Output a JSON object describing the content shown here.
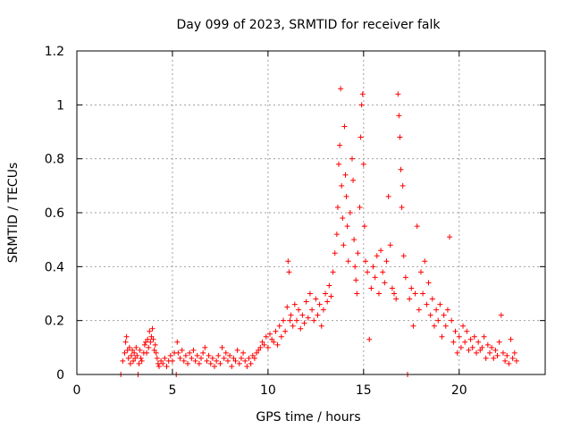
{
  "chart_data": {
    "type": "scatter",
    "title": "Day 099 of 2023, SRMTID for receiver falk",
    "xlabel": "GPS time / hours",
    "ylabel": "SRMTID / TECUs",
    "xlim": [
      0,
      24.5
    ],
    "ylim": [
      0,
      1.2
    ],
    "xticks": [
      0,
      5,
      10,
      15,
      20
    ],
    "xtick_labels": [
      "0",
      "5",
      "10",
      "15",
      "20"
    ],
    "yticks": [
      0,
      0.2,
      0.4,
      0.6,
      0.8,
      1.0,
      1.2
    ],
    "ytick_labels": [
      "0",
      "0.2",
      "0.4",
      "0.6",
      "0.8",
      "1",
      "1.2"
    ],
    "grid": true,
    "marker": "plus",
    "color": "#ff0000",
    "series": [
      {
        "name": "SRMTID",
        "points": [
          [
            2.3,
            0.0
          ],
          [
            2.4,
            0.05
          ],
          [
            2.5,
            0.08
          ],
          [
            2.55,
            0.12
          ],
          [
            2.6,
            0.14
          ],
          [
            2.65,
            0.09
          ],
          [
            2.7,
            0.06
          ],
          [
            2.75,
            0.1
          ],
          [
            2.8,
            0.04
          ],
          [
            2.85,
            0.07
          ],
          [
            2.9,
            0.09
          ],
          [
            2.95,
            0.05
          ],
          [
            3.0,
            0.08
          ],
          [
            3.05,
            0.06
          ],
          [
            3.1,
            0.1
          ],
          [
            3.15,
            0.07
          ],
          [
            3.2,
            0.0
          ],
          [
            3.25,
            0.04
          ],
          [
            3.3,
            0.09
          ],
          [
            3.35,
            0.06
          ],
          [
            3.4,
            0.05
          ],
          [
            3.5,
            0.08
          ],
          [
            3.55,
            0.11
          ],
          [
            3.6,
            0.12
          ],
          [
            3.65,
            0.08
          ],
          [
            3.7,
            0.13
          ],
          [
            3.75,
            0.1
          ],
          [
            3.8,
            0.16
          ],
          [
            3.85,
            0.12
          ],
          [
            3.9,
            0.14
          ],
          [
            3.95,
            0.17
          ],
          [
            4.0,
            0.13
          ],
          [
            4.05,
            0.09
          ],
          [
            4.1,
            0.11
          ],
          [
            4.15,
            0.08
          ],
          [
            4.2,
            0.06
          ],
          [
            4.25,
            0.04
          ],
          [
            4.3,
            0.03
          ],
          [
            4.4,
            0.05
          ],
          [
            4.5,
            0.04
          ],
          [
            4.6,
            0.06
          ],
          [
            4.7,
            0.03
          ],
          [
            4.8,
            0.05
          ],
          [
            4.9,
            0.07
          ],
          [
            5.0,
            0.05
          ],
          [
            5.1,
            0.08
          ],
          [
            5.2,
            0.0
          ],
          [
            5.25,
            0.12
          ],
          [
            5.3,
            0.08
          ],
          [
            5.4,
            0.06
          ],
          [
            5.5,
            0.09
          ],
          [
            5.6,
            0.05
          ],
          [
            5.7,
            0.07
          ],
          [
            5.8,
            0.04
          ],
          [
            5.9,
            0.08
          ],
          [
            6.0,
            0.06
          ],
          [
            6.1,
            0.09
          ],
          [
            6.2,
            0.05
          ],
          [
            6.3,
            0.07
          ],
          [
            6.4,
            0.04
          ],
          [
            6.5,
            0.06
          ],
          [
            6.6,
            0.08
          ],
          [
            6.7,
            0.1
          ],
          [
            6.8,
            0.05
          ],
          [
            6.9,
            0.07
          ],
          [
            7.0,
            0.04
          ],
          [
            7.1,
            0.06
          ],
          [
            7.2,
            0.03
          ],
          [
            7.3,
            0.05
          ],
          [
            7.4,
            0.07
          ],
          [
            7.5,
            0.04
          ],
          [
            7.6,
            0.1
          ],
          [
            7.7,
            0.06
          ],
          [
            7.8,
            0.08
          ],
          [
            7.9,
            0.05
          ],
          [
            8.0,
            0.07
          ],
          [
            8.1,
            0.03
          ],
          [
            8.2,
            0.06
          ],
          [
            8.3,
            0.05
          ],
          [
            8.4,
            0.09
          ],
          [
            8.5,
            0.04
          ],
          [
            8.6,
            0.06
          ],
          [
            8.7,
            0.08
          ],
          [
            8.8,
            0.05
          ],
          [
            8.9,
            0.03
          ],
          [
            9.0,
            0.06
          ],
          [
            9.1,
            0.04
          ],
          [
            9.2,
            0.07
          ],
          [
            9.3,
            0.06
          ],
          [
            9.4,
            0.08
          ],
          [
            9.5,
            0.09
          ],
          [
            9.6,
            0.1
          ],
          [
            9.7,
            0.12
          ],
          [
            9.8,
            0.11
          ],
          [
            9.9,
            0.14
          ],
          [
            10.0,
            0.1
          ],
          [
            10.1,
            0.15
          ],
          [
            10.2,
            0.13
          ],
          [
            10.3,
            0.12
          ],
          [
            10.4,
            0.16
          ],
          [
            10.5,
            0.11
          ],
          [
            10.6,
            0.18
          ],
          [
            10.7,
            0.14
          ],
          [
            10.8,
            0.2
          ],
          [
            10.9,
            0.16
          ],
          [
            11.0,
            0.25
          ],
          [
            11.05,
            0.42
          ],
          [
            11.1,
            0.38
          ],
          [
            11.15,
            0.2
          ],
          [
            11.2,
            0.22
          ],
          [
            11.3,
            0.18
          ],
          [
            11.4,
            0.26
          ],
          [
            11.5,
            0.2
          ],
          [
            11.6,
            0.24
          ],
          [
            11.7,
            0.17
          ],
          [
            11.8,
            0.22
          ],
          [
            11.9,
            0.19
          ],
          [
            12.0,
            0.27
          ],
          [
            12.1,
            0.21
          ],
          [
            12.2,
            0.3
          ],
          [
            12.3,
            0.24
          ],
          [
            12.4,
            0.2
          ],
          [
            12.5,
            0.28
          ],
          [
            12.6,
            0.22
          ],
          [
            12.7,
            0.26
          ],
          [
            12.8,
            0.18
          ],
          [
            12.9,
            0.24
          ],
          [
            13.0,
            0.3
          ],
          [
            13.1,
            0.27
          ],
          [
            13.2,
            0.33
          ],
          [
            13.3,
            0.29
          ],
          [
            13.4,
            0.38
          ],
          [
            13.5,
            0.45
          ],
          [
            13.6,
            0.52
          ],
          [
            13.65,
            0.62
          ],
          [
            13.7,
            0.78
          ],
          [
            13.75,
            0.85
          ],
          [
            13.8,
            1.06
          ],
          [
            13.85,
            0.7
          ],
          [
            13.9,
            0.58
          ],
          [
            13.95,
            0.48
          ],
          [
            14.0,
            0.92
          ],
          [
            14.05,
            0.74
          ],
          [
            14.1,
            0.66
          ],
          [
            14.15,
            0.55
          ],
          [
            14.2,
            0.42
          ],
          [
            14.3,
            0.6
          ],
          [
            14.4,
            0.8
          ],
          [
            14.45,
            0.72
          ],
          [
            14.5,
            0.5
          ],
          [
            14.55,
            0.4
          ],
          [
            14.6,
            0.35
          ],
          [
            14.65,
            0.3
          ],
          [
            14.7,
            0.45
          ],
          [
            14.8,
            0.62
          ],
          [
            14.85,
            0.88
          ],
          [
            14.9,
            1.0
          ],
          [
            14.95,
            1.04
          ],
          [
            15.0,
            0.78
          ],
          [
            15.05,
            0.55
          ],
          [
            15.1,
            0.42
          ],
          [
            15.2,
            0.38
          ],
          [
            15.3,
            0.13
          ],
          [
            15.4,
            0.32
          ],
          [
            15.5,
            0.4
          ],
          [
            15.6,
            0.36
          ],
          [
            15.7,
            0.44
          ],
          [
            15.8,
            0.3
          ],
          [
            15.9,
            0.46
          ],
          [
            16.0,
            0.38
          ],
          [
            16.1,
            0.34
          ],
          [
            16.2,
            0.42
          ],
          [
            16.3,
            0.66
          ],
          [
            16.4,
            0.48
          ],
          [
            16.5,
            0.32
          ],
          [
            16.6,
            0.3
          ],
          [
            16.7,
            0.28
          ],
          [
            16.8,
            1.04
          ],
          [
            16.85,
            0.96
          ],
          [
            16.9,
            0.88
          ],
          [
            16.95,
            0.76
          ],
          [
            17.0,
            0.62
          ],
          [
            17.05,
            0.7
          ],
          [
            17.1,
            0.44
          ],
          [
            17.2,
            0.36
          ],
          [
            17.3,
            0.0
          ],
          [
            17.4,
            0.28
          ],
          [
            17.5,
            0.32
          ],
          [
            17.6,
            0.18
          ],
          [
            17.7,
            0.3
          ],
          [
            17.8,
            0.55
          ],
          [
            17.9,
            0.24
          ],
          [
            18.0,
            0.38
          ],
          [
            18.1,
            0.3
          ],
          [
            18.2,
            0.42
          ],
          [
            18.3,
            0.26
          ],
          [
            18.4,
            0.34
          ],
          [
            18.5,
            0.22
          ],
          [
            18.6,
            0.28
          ],
          [
            18.7,
            0.18
          ],
          [
            18.8,
            0.24
          ],
          [
            18.9,
            0.2
          ],
          [
            19.0,
            0.26
          ],
          [
            19.1,
            0.14
          ],
          [
            19.2,
            0.22
          ],
          [
            19.3,
            0.18
          ],
          [
            19.4,
            0.24
          ],
          [
            19.5,
            0.51
          ],
          [
            19.6,
            0.2
          ],
          [
            19.7,
            0.12
          ],
          [
            19.8,
            0.16
          ],
          [
            19.9,
            0.08
          ],
          [
            20.0,
            0.14
          ],
          [
            20.1,
            0.1
          ],
          [
            20.2,
            0.18
          ],
          [
            20.3,
            0.12
          ],
          [
            20.4,
            0.16
          ],
          [
            20.5,
            0.09
          ],
          [
            20.6,
            0.13
          ],
          [
            20.7,
            0.1
          ],
          [
            20.8,
            0.14
          ],
          [
            20.9,
            0.08
          ],
          [
            21.0,
            0.12
          ],
          [
            21.1,
            0.09
          ],
          [
            21.2,
            0.1
          ],
          [
            21.3,
            0.14
          ],
          [
            21.4,
            0.06
          ],
          [
            21.5,
            0.11
          ],
          [
            21.6,
            0.08
          ],
          [
            21.7,
            0.1
          ],
          [
            21.8,
            0.06
          ],
          [
            21.9,
            0.09
          ],
          [
            22.0,
            0.07
          ],
          [
            22.1,
            0.12
          ],
          [
            22.2,
            0.22
          ],
          [
            22.3,
            0.08
          ],
          [
            22.4,
            0.05
          ],
          [
            22.5,
            0.07
          ],
          [
            22.6,
            0.04
          ],
          [
            22.7,
            0.13
          ],
          [
            22.8,
            0.06
          ],
          [
            22.9,
            0.08
          ],
          [
            23.0,
            0.05
          ]
        ]
      }
    ]
  }
}
